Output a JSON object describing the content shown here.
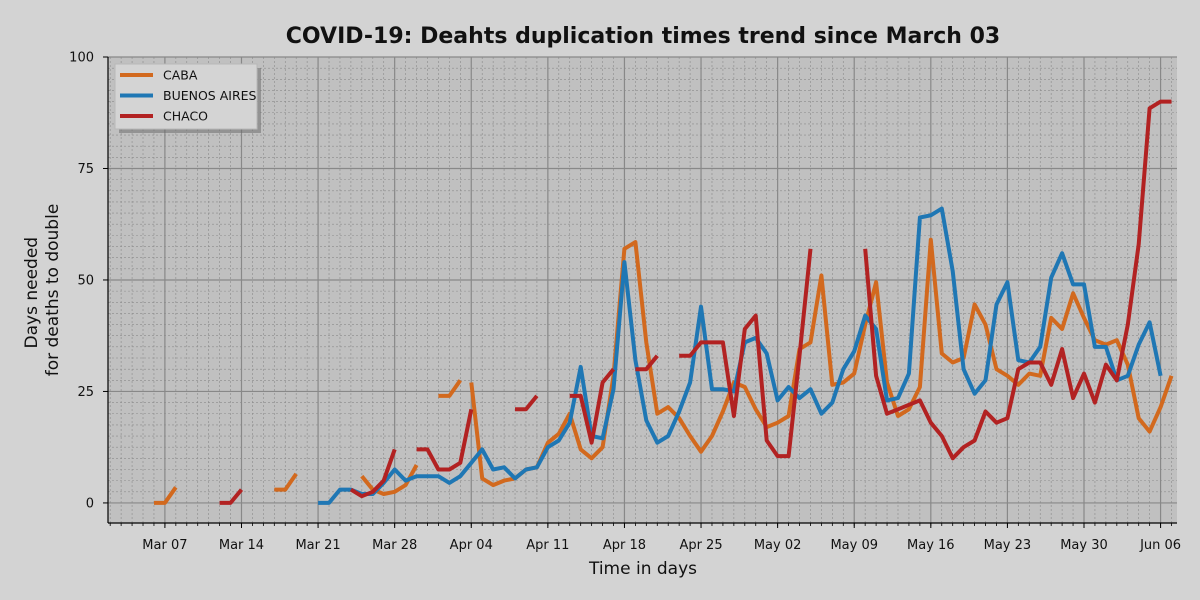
{
  "chart_data": {
    "type": "line",
    "title": "COVID-19: Deahts duplication times trend since March 03",
    "xlabel": "Time in days",
    "ylabel_lines": [
      "Days needed",
      "for deaths to double"
    ],
    "ylim": [
      0,
      100
    ],
    "y_ticks": [
      0,
      25,
      50,
      75,
      100
    ],
    "x_start_label": "Mar 03",
    "x_range_days": [
      -1.2,
      96.5
    ],
    "x_ticks": [
      {
        "day": 4,
        "label": "Mar 07"
      },
      {
        "day": 11,
        "label": "Mar 14"
      },
      {
        "day": 18,
        "label": "Mar 21"
      },
      {
        "day": 25,
        "label": "Mar 28"
      },
      {
        "day": 32,
        "label": "Apr 04"
      },
      {
        "day": 39,
        "label": "Apr 11"
      },
      {
        "day": 46,
        "label": "Apr 18"
      },
      {
        "day": 53,
        "label": "Apr 25"
      },
      {
        "day": 60,
        "label": "May 02"
      },
      {
        "day": 67,
        "label": "May 09"
      },
      {
        "day": 74,
        "label": "May 16"
      },
      {
        "day": 81,
        "label": "May 23"
      },
      {
        "day": 88,
        "label": "May 30"
      },
      {
        "day": 95,
        "label": "Jun 06"
      }
    ],
    "grid": true,
    "legend_position": "top-left",
    "colors": {
      "background": "#d3d3d3",
      "plot_background": "#c0c0c0",
      "grid_major": "#888888",
      "grid_minor": "#8a8a8a"
    },
    "series": [
      {
        "name": "CABA",
        "color": "#d2691e",
        "points": [
          [
            3,
            0
          ],
          [
            4,
            0
          ],
          [
            5,
            3.5
          ],
          null,
          [
            14,
            3
          ],
          [
            15,
            3
          ],
          [
            16,
            6.5
          ],
          null,
          [
            22,
            6
          ],
          [
            23,
            3
          ],
          [
            24,
            2
          ],
          [
            25,
            2.5
          ],
          [
            26,
            4
          ],
          [
            27,
            8.5
          ],
          null,
          [
            29,
            24
          ],
          [
            30,
            24
          ],
          [
            31,
            27.5
          ],
          null,
          [
            32,
            27
          ],
          [
            33,
            5.5
          ],
          [
            34,
            4
          ],
          [
            35,
            5
          ],
          [
            36,
            5.5
          ],
          [
            37,
            7.5
          ],
          [
            38,
            8
          ],
          [
            39,
            13.5
          ],
          [
            40,
            15.5
          ],
          [
            41,
            20
          ],
          [
            42,
            12
          ],
          [
            43,
            10
          ],
          [
            44,
            12.5
          ],
          [
            45,
            28.5
          ],
          [
            46,
            57
          ],
          [
            47,
            58.5
          ],
          [
            48,
            36
          ],
          [
            49,
            20
          ],
          [
            50,
            21.5
          ],
          [
            51,
            19
          ],
          [
            52,
            15
          ],
          [
            53,
            11.5
          ],
          [
            54,
            15
          ],
          [
            55,
            20.5
          ],
          [
            56,
            27
          ],
          [
            57,
            26
          ],
          [
            58,
            21
          ],
          [
            59,
            17
          ],
          [
            60,
            18
          ],
          [
            61,
            19.5
          ],
          [
            62,
            34.5
          ],
          [
            63,
            36
          ],
          [
            64,
            51
          ],
          [
            65,
            26.5
          ],
          [
            66,
            27
          ],
          [
            67,
            29
          ],
          [
            68,
            40
          ],
          [
            69,
            49.5
          ],
          [
            70,
            27
          ],
          [
            71,
            19.5
          ],
          [
            72,
            21
          ],
          [
            73,
            26
          ],
          [
            74,
            59
          ],
          [
            75,
            33.5
          ],
          [
            76,
            31.5
          ],
          [
            77,
            32.5
          ],
          [
            78,
            44.5
          ],
          [
            79,
            40
          ],
          [
            80,
            30
          ],
          [
            81,
            28.5
          ],
          [
            82,
            26.5
          ],
          [
            83,
            29
          ],
          [
            84,
            28.5
          ],
          [
            85,
            41.5
          ],
          [
            86,
            39
          ],
          [
            87,
            47
          ],
          [
            88,
            41.5
          ],
          [
            89,
            36.5
          ],
          [
            90,
            35.5
          ],
          [
            91,
            36.5
          ],
          [
            92,
            31
          ],
          [
            93,
            19
          ],
          [
            94,
            16
          ],
          [
            95,
            21.5
          ],
          [
            96,
            28.5
          ]
        ]
      },
      {
        "name": "BUENOS AIRES",
        "color": "#1f77b4",
        "points": [
          [
            18,
            0
          ],
          [
            19,
            0
          ],
          [
            20,
            3
          ],
          [
            21,
            3
          ],
          [
            22,
            2
          ],
          [
            23,
            2
          ],
          [
            24,
            4.5
          ],
          [
            25,
            7.5
          ],
          [
            26,
            5
          ],
          [
            27,
            6
          ],
          [
            28,
            6
          ],
          [
            29,
            6
          ],
          [
            30,
            4.5
          ],
          [
            31,
            6
          ],
          [
            32,
            9
          ],
          [
            33,
            12
          ],
          [
            34,
            7.5
          ],
          [
            35,
            8
          ],
          [
            36,
            5.5
          ],
          [
            37,
            7.5
          ],
          [
            38,
            8
          ],
          [
            39,
            12.5
          ],
          [
            40,
            14
          ],
          [
            41,
            18
          ],
          [
            42,
            30.5
          ],
          [
            43,
            15
          ],
          [
            44,
            14.5
          ],
          [
            45,
            25.5
          ],
          [
            46,
            54
          ],
          [
            47,
            32
          ],
          [
            48,
            18.5
          ],
          [
            49,
            13.5
          ],
          [
            50,
            15
          ],
          [
            51,
            20.5
          ],
          [
            52,
            27
          ],
          [
            53,
            44
          ],
          [
            54,
            25.5
          ],
          [
            55,
            25.5
          ],
          [
            56,
            25
          ],
          [
            57,
            36
          ],
          [
            58,
            37
          ],
          [
            59,
            33.5
          ],
          [
            60,
            23
          ],
          [
            61,
            26
          ],
          [
            62,
            23.5
          ],
          [
            63,
            25.5
          ],
          [
            64,
            20
          ],
          [
            65,
            22.5
          ],
          [
            66,
            30
          ],
          [
            67,
            34
          ],
          [
            68,
            42
          ],
          [
            69,
            39
          ],
          [
            70,
            23
          ],
          [
            71,
            23.5
          ],
          [
            72,
            29
          ],
          [
            73,
            64
          ],
          [
            74,
            64.5
          ],
          [
            75,
            66
          ],
          [
            76,
            52
          ],
          [
            77,
            30
          ],
          [
            78,
            24.5
          ],
          [
            79,
            27.5
          ],
          [
            80,
            44.5
          ],
          [
            81,
            49.5
          ],
          [
            82,
            32
          ],
          [
            83,
            31.5
          ],
          [
            84,
            35
          ],
          [
            85,
            50.5
          ],
          [
            86,
            56
          ],
          [
            87,
            49
          ],
          [
            88,
            49
          ],
          [
            89,
            35
          ],
          [
            90,
            35
          ],
          [
            91,
            27.5
          ],
          [
            92,
            28.5
          ],
          [
            93,
            35.5
          ],
          [
            94,
            40.5
          ],
          [
            95,
            28.5
          ]
        ]
      },
      {
        "name": "CHACO",
        "color": "#b22222",
        "points": [
          [
            9,
            0
          ],
          [
            10,
            0
          ],
          [
            11,
            3
          ],
          null,
          [
            21,
            3
          ],
          [
            22,
            1.5
          ],
          [
            23,
            2.5
          ],
          [
            24,
            5
          ],
          [
            25,
            12
          ],
          null,
          [
            27,
            12
          ],
          [
            28,
            12
          ],
          [
            29,
            7.5
          ],
          [
            30,
            7.5
          ],
          [
            31,
            9
          ],
          [
            32,
            21
          ],
          null,
          [
            36,
            21
          ],
          [
            37,
            21
          ],
          [
            38,
            24
          ],
          null,
          [
            41,
            24
          ],
          [
            42,
            24
          ],
          [
            43,
            13.5
          ],
          [
            44,
            27
          ],
          [
            45,
            30
          ],
          null,
          [
            47,
            30
          ],
          [
            48,
            30
          ],
          [
            49,
            33
          ],
          null,
          [
            51,
            33
          ],
          [
            52,
            33
          ],
          [
            53,
            36
          ],
          [
            54,
            36
          ],
          [
            55,
            36
          ],
          [
            56,
            19.5
          ],
          [
            57,
            39
          ],
          [
            58,
            42
          ],
          [
            59,
            14
          ],
          [
            60,
            10.5
          ],
          [
            61,
            10.5
          ],
          [
            62,
            33
          ],
          [
            63,
            57
          ],
          null,
          [
            68,
            57
          ],
          [
            69,
            28.5
          ],
          [
            70,
            20
          ],
          [
            71,
            21
          ],
          [
            72,
            22
          ],
          [
            73,
            23
          ],
          [
            74,
            18
          ],
          [
            75,
            15
          ],
          [
            76,
            10
          ],
          [
            77,
            12.5
          ],
          [
            78,
            14
          ],
          [
            79,
            20.5
          ],
          [
            80,
            18
          ],
          [
            81,
            19
          ],
          [
            82,
            30
          ],
          [
            83,
            31.5
          ],
          [
            84,
            31.5
          ],
          [
            85,
            26.5
          ],
          [
            86,
            34.5
          ],
          [
            87,
            23.5
          ],
          [
            88,
            29
          ],
          [
            89,
            22.5
          ],
          [
            90,
            31
          ],
          [
            91,
            27.5
          ],
          [
            92,
            40
          ],
          [
            93,
            58
          ],
          [
            94,
            88.5
          ],
          [
            95,
            90
          ],
          [
            96,
            90
          ]
        ]
      }
    ]
  }
}
